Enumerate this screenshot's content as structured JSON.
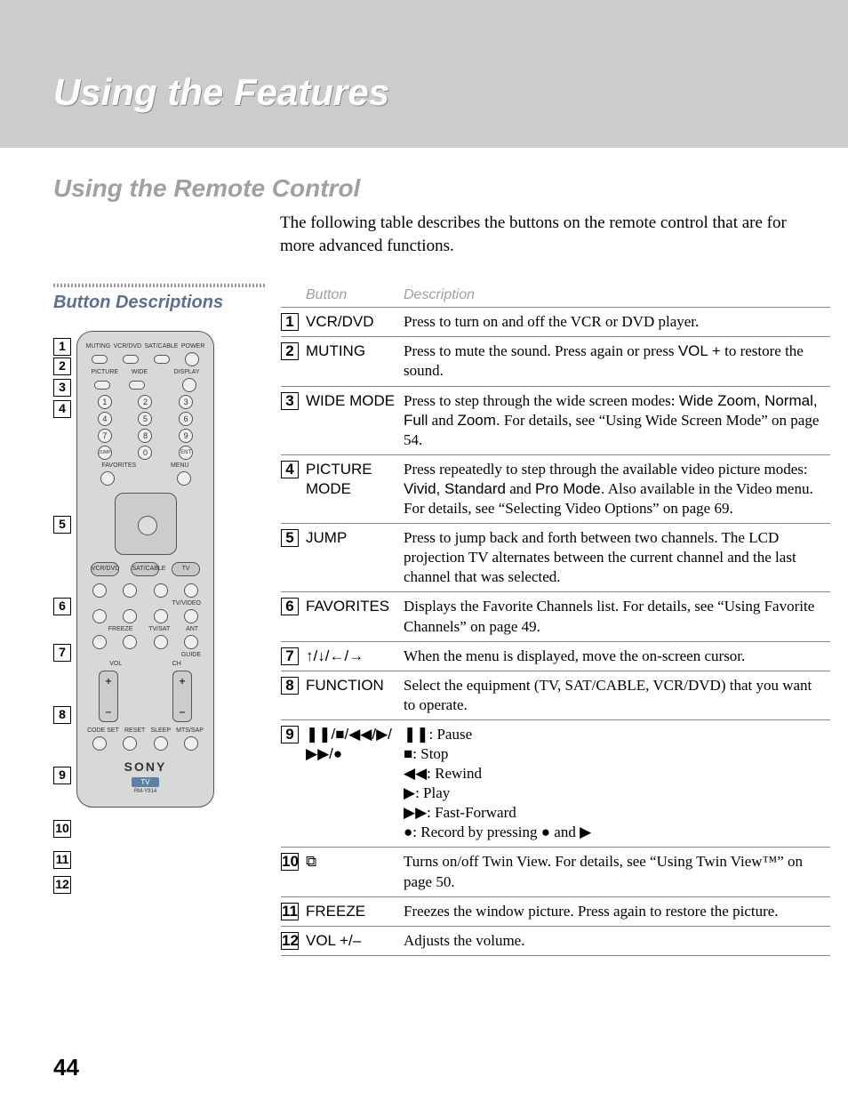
{
  "header": {
    "title": "Using the Features",
    "subtitle": "Using the Remote Control",
    "intro": "The following table describes the buttons on the remote control that are for more advanced functions."
  },
  "section_heading": "Button Descriptions",
  "table_header": {
    "button": "Button",
    "description": "Description"
  },
  "rows": [
    {
      "n": "1",
      "button": "VCR/DVD",
      "desc": "Press to turn on and off the VCR or DVD player."
    },
    {
      "n": "2",
      "button": "MUTING",
      "desc": "Press to mute the sound. Press again or press <span class='sans'>VOL +</span> to restore the sound."
    },
    {
      "n": "3",
      "button": "WIDE MODE",
      "desc": "Press to step through the wide screen modes: <span class='sans'>Wide Zoom, Normal, Full</span> and <span class='sans'>Zoom.</span> For details, see “Using Wide Screen Mode” on page 54."
    },
    {
      "n": "4",
      "button": "PICTURE MODE",
      "desc": "Press repeatedly to step through the available video picture modes: <span class='sans'>Vivid, Standard</span> and <span class='sans'>Pro Mode.</span> Also available in the Video menu. For details, see “Selecting Video Options” on page 69."
    },
    {
      "n": "5",
      "button": "JUMP",
      "desc": "Press to jump back and forth between two channels. The LCD projection TV alternates between the current channel and the last channel that was selected."
    },
    {
      "n": "6",
      "button": "FAVORITES",
      "desc": "Displays the Favorite Channels list. For details, see “Using Favorite Channels” on page 49."
    },
    {
      "n": "7",
      "button": "↑/↓/←/→",
      "desc": "When the menu is displayed, move the on-screen cursor."
    },
    {
      "n": "8",
      "button": "FUNCTION",
      "desc": "Select the equipment (TV, SAT/CABLE, VCR/DVD) that you want to operate."
    },
    {
      "n": "9",
      "button": "❚❚/■/◀◀/▶/▶▶/●",
      "desc": "<span class='sym'>❚❚</span>: Pause<br><span class='sym'>■</span>: Stop<br><span class='sym'>◀◀</span>: Rewind<br><span class='sym'>▶</span>: Play<br><span class='sym'>▶▶</span>: Fast-Forward<br><span class='sym'>●</span>: Record by pressing <span class='sym'>●</span> and <span class='sym'>▶</span>"
    },
    {
      "n": "10",
      "button": "⧉",
      "desc": "Turns on/off Twin View. For details, see “Using Twin View™” on page 50."
    },
    {
      "n": "11",
      "button": "FREEZE",
      "desc": "Freezes the window picture. Press again to restore the picture."
    },
    {
      "n": "12",
      "button": "VOL +/–",
      "desc": "Adjusts the volume."
    }
  ],
  "remote": {
    "top_labels": [
      "MUTING",
      "VCR/DVD",
      "SAT/CABLE",
      "POWER"
    ],
    "mid_labels": [
      "PICTURE",
      "WIDE",
      "DISPLAY"
    ],
    "jump": "JUMP",
    "ent": "ENT",
    "fav": "FAVORITES",
    "menu": "MENU",
    "func": [
      "VCR/DVD",
      "SAT/CABLE",
      "TV"
    ],
    "tvvideo": "TV/VIDEO",
    "freeze": "FREEZE",
    "tvsat": "TV/SAT",
    "ant": "ANT",
    "guide": "GUIDE",
    "vol": "VOL",
    "ch": "CH",
    "bottom": [
      "CODE SET",
      "RESET",
      "SLEEP",
      "MTS/SAP"
    ],
    "brand": "SONY",
    "tv": "TV",
    "model": "RM-Y914"
  },
  "callout_gaps": [
    2,
    0,
    0,
    110,
    72,
    32,
    50,
    48,
    40,
    15,
    8,
    12
  ],
  "page_number": "44"
}
